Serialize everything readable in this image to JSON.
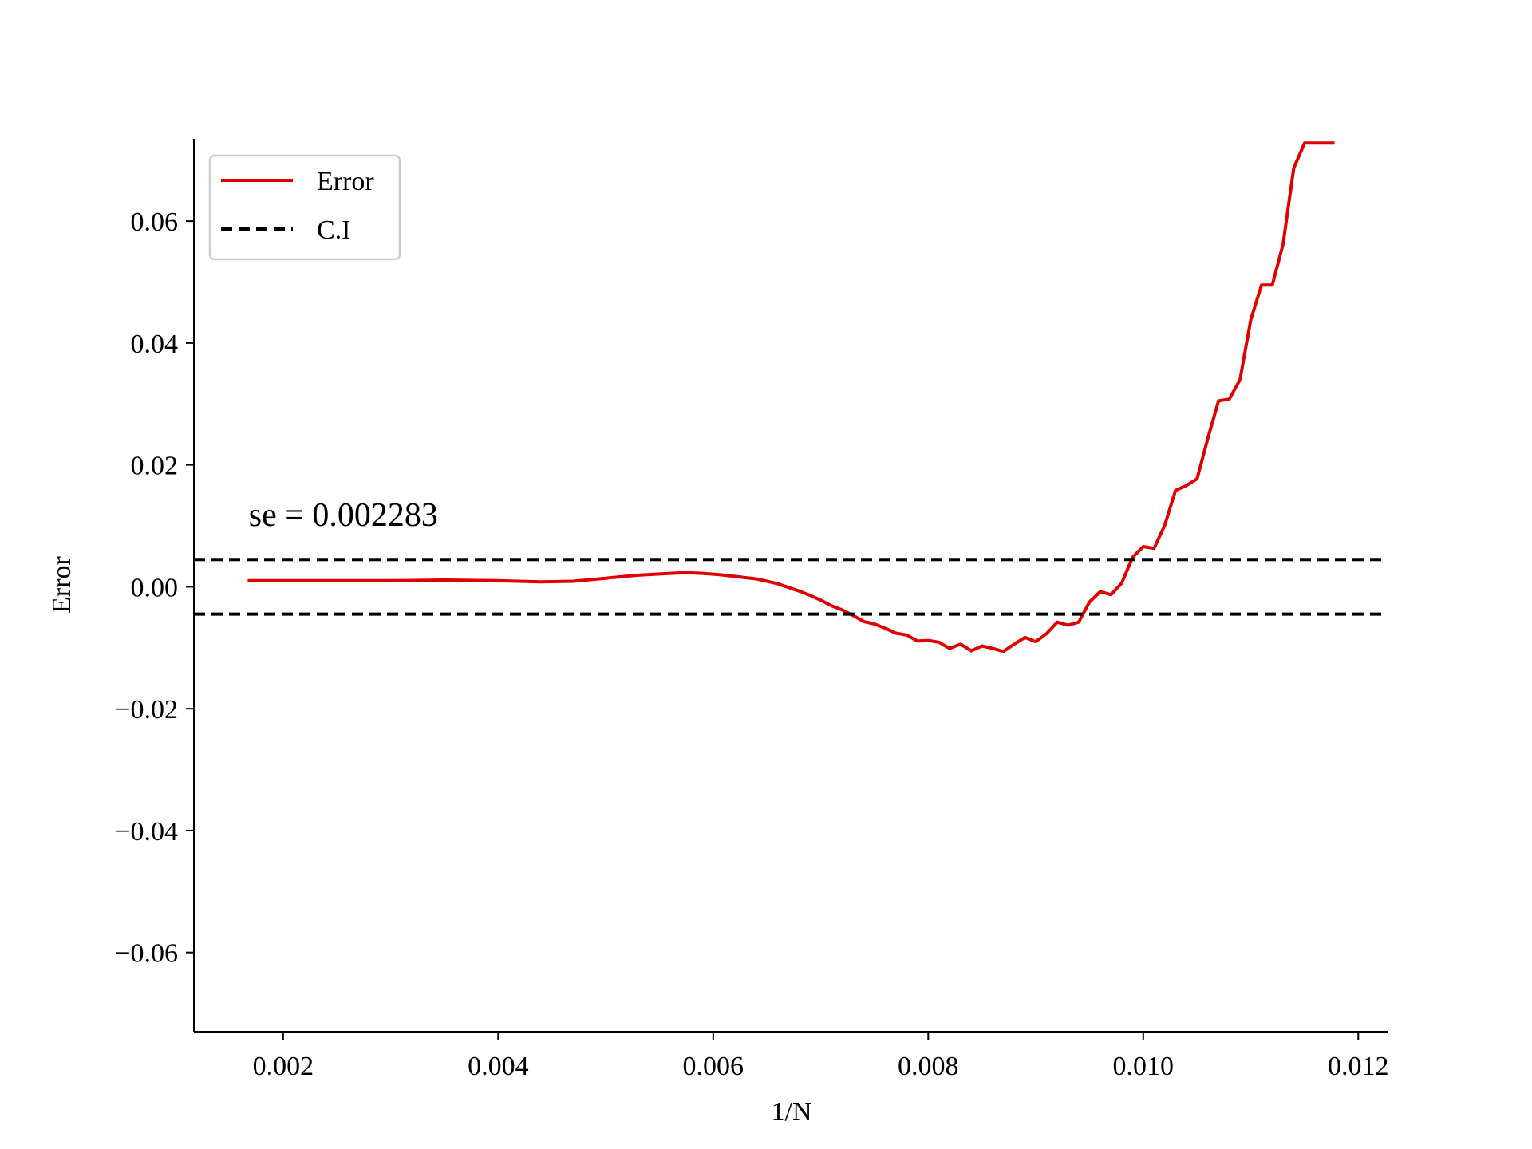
{
  "chart_data": {
    "type": "line",
    "title": "",
    "xlabel": "1/N",
    "ylabel": "Error",
    "xlim": [
      0.00117,
      0.01228
    ],
    "ylim": [
      -0.073,
      0.0735
    ],
    "xticks": [
      0.002,
      0.004,
      0.006,
      0.008,
      0.01,
      0.012
    ],
    "xtick_labels": [
      "0.002",
      "0.004",
      "0.006",
      "0.008",
      "0.010",
      "0.012"
    ],
    "yticks": [
      -0.06,
      -0.04,
      -0.02,
      0.0,
      0.02,
      0.04,
      0.06
    ],
    "ytick_labels": [
      "−0.06",
      "−0.04",
      "−0.02",
      "0.00",
      "0.02",
      "0.04",
      "0.06"
    ],
    "grid": false,
    "legend_position": "top-left",
    "annotation": "se = 0.002283",
    "annotation_pos": [
      0.00168,
      0.01
    ],
    "series": [
      {
        "name": "Error",
        "style": "solid",
        "color": "#e00000",
        "x": [
          0.00167,
          0.0025,
          0.003,
          0.0035,
          0.004,
          0.0044,
          0.0047,
          0.005,
          0.0053,
          0.0056,
          0.00575,
          0.0059,
          0.00605,
          0.0062,
          0.0063,
          0.0064,
          0.0065,
          0.0066,
          0.0067,
          0.0068,
          0.0069,
          0.007,
          0.0071,
          0.0072,
          0.0073,
          0.0074,
          0.0075,
          0.0076,
          0.0077,
          0.0078,
          0.0079,
          0.008,
          0.0081,
          0.0082,
          0.0083,
          0.0084,
          0.0085,
          0.0086,
          0.0087,
          0.0088,
          0.0089,
          0.009,
          0.0091,
          0.0092,
          0.0093,
          0.0094,
          0.0095,
          0.0096,
          0.0097,
          0.0098,
          0.0099,
          0.01,
          0.0101,
          0.0102,
          0.0103,
          0.0104,
          0.0105,
          0.0106,
          0.0107,
          0.0108,
          0.0109,
          0.011,
          0.0111,
          0.0112,
          0.0113,
          0.0114,
          0.0115,
          0.0116,
          0.0117,
          0.01178
        ],
        "y": [
          0.001,
          0.001,
          0.001,
          0.0011,
          0.001,
          0.0008,
          0.0009,
          0.0014,
          0.0019,
          0.0022,
          0.0023,
          0.0022,
          0.002,
          0.0017,
          0.0015,
          0.0013,
          0.0009,
          0.0005,
          -0.0001,
          -0.0007,
          -0.0014,
          -0.0022,
          -0.0031,
          -0.0038,
          -0.0047,
          -0.0057,
          -0.0061,
          -0.0068,
          -0.0076,
          -0.0079,
          -0.0089,
          -0.0088,
          -0.0091,
          -0.0101,
          -0.0094,
          -0.0105,
          -0.0097,
          -0.0101,
          -0.0106,
          -0.0094,
          -0.0083,
          -0.009,
          -0.0077,
          -0.0058,
          -0.0063,
          -0.0058,
          -0.0025,
          -0.0008,
          -0.0013,
          0.0006,
          0.0048,
          0.0066,
          0.0063,
          0.0101,
          0.0158,
          0.0166,
          0.0177,
          0.0243,
          0.0305,
          0.0308,
          0.034,
          0.0438,
          0.0495,
          0.0495,
          0.0562,
          0.0687,
          0.0728,
          0.0728,
          0.0728,
          0.0728
        ]
      },
      {
        "name": "C.I",
        "style": "dashed",
        "color": "#000000",
        "x": [
          0.00117,
          0.01228
        ],
        "y": [
          0.004475,
          0.004475
        ]
      },
      {
        "name": "",
        "style": "dashed",
        "color": "#000000",
        "x": [
          0.00117,
          0.01228
        ],
        "y": [
          -0.004475,
          -0.004475
        ]
      }
    ]
  }
}
